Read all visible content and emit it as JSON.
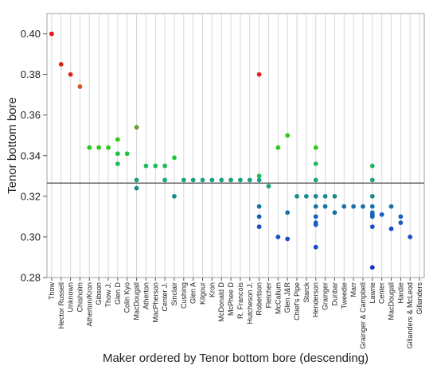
{
  "chart_data": {
    "type": "scatter",
    "title": "",
    "xlabel": "Maker ordered by Tenor bottom bore (descending)",
    "ylabel": "Tenor bottom bore",
    "ylim": [
      0.28,
      0.41
    ],
    "yticks": [
      0.28,
      0.3,
      0.32,
      0.34,
      0.36,
      0.38,
      0.4
    ],
    "ytick_labels": [
      "0.28",
      "0.30",
      "0.32",
      "0.34",
      "0.36",
      "0.38",
      "0.40"
    ],
    "grid": "vertical gridlines per category",
    "reference_line": 0.3265,
    "categories": [
      "Thow",
      "Hector Russell",
      "Unknown",
      "Chisholm",
      "Atherton/Kron",
      "Gibson",
      "Thow J.",
      "Glen D",
      "Colin Kyo",
      "MacDougall",
      "Atherton",
      "MacPherson",
      "Center J.",
      "Sinclair",
      "Cushing",
      "Glen A",
      "Kilgour",
      "Kron",
      "McDonald D",
      "McPhee D",
      "R. Francois",
      "Hutcheson J.",
      "Robertson",
      "Fletcher",
      "McCallum",
      "Glen J&R",
      "Chief's Pipe",
      "Starck",
      "Henderson",
      "Grainger",
      "Dunbar",
      "Tweedie",
      "Marr",
      "Grainger & Campbell",
      "Lawrie",
      "Center",
      "MacDougall",
      "Hardie",
      "Gillanders & McLeod",
      "Gillanders"
    ],
    "points": [
      {
        "x": 0,
        "y": 0.4,
        "color": "#e8121a"
      },
      {
        "x": 1,
        "y": 0.385,
        "color": "#e02418"
      },
      {
        "x": 2,
        "y": 0.38,
        "color": "#e02418"
      },
      {
        "x": 3,
        "y": 0.374,
        "color": "#d2561d"
      },
      {
        "x": 4,
        "y": 0.344,
        "color": "#2fc81e"
      },
      {
        "x": 5,
        "y": 0.344,
        "color": "#2fc81e"
      },
      {
        "x": 6,
        "y": 0.344,
        "color": "#2fc81e"
      },
      {
        "x": 7,
        "y": 0.348,
        "color": "#36c81c"
      },
      {
        "x": 7,
        "y": 0.341,
        "color": "#22c43a"
      },
      {
        "x": 7,
        "y": 0.336,
        "color": "#1ebb58"
      },
      {
        "x": 8,
        "y": 0.341,
        "color": "#22c43a"
      },
      {
        "x": 9,
        "y": 0.354,
        "color": "#6a9e2a"
      },
      {
        "x": 9,
        "y": 0.328,
        "color": "#1aa37e"
      },
      {
        "x": 9,
        "y": 0.324,
        "color": "#1a8a8c"
      },
      {
        "x": 10,
        "y": 0.335,
        "color": "#1ebb58"
      },
      {
        "x": 11,
        "y": 0.335,
        "color": "#1ebb58"
      },
      {
        "x": 12,
        "y": 0.335,
        "color": "#1ebb58"
      },
      {
        "x": 12,
        "y": 0.328,
        "color": "#1aa37e"
      },
      {
        "x": 13,
        "y": 0.339,
        "color": "#22c43a"
      },
      {
        "x": 13,
        "y": 0.32,
        "color": "#1a8a8c"
      },
      {
        "x": 14,
        "y": 0.328,
        "color": "#1aa37e"
      },
      {
        "x": 15,
        "y": 0.328,
        "color": "#1aa37e"
      },
      {
        "x": 16,
        "y": 0.328,
        "color": "#1aa37e"
      },
      {
        "x": 17,
        "y": 0.328,
        "color": "#1aa37e"
      },
      {
        "x": 18,
        "y": 0.328,
        "color": "#1aa37e"
      },
      {
        "x": 19,
        "y": 0.328,
        "color": "#1aa37e"
      },
      {
        "x": 20,
        "y": 0.328,
        "color": "#1aa37e"
      },
      {
        "x": 21,
        "y": 0.328,
        "color": "#1aa37e"
      },
      {
        "x": 22,
        "y": 0.38,
        "color": "#e02418"
      },
      {
        "x": 22,
        "y": 0.33,
        "color": "#1ebb58"
      },
      {
        "x": 22,
        "y": 0.328,
        "color": "#1aa37e"
      },
      {
        "x": 22,
        "y": 0.315,
        "color": "#1a70a8"
      },
      {
        "x": 22,
        "y": 0.31,
        "color": "#1a5fc0"
      },
      {
        "x": 22,
        "y": 0.305,
        "color": "#1a4ec8"
      },
      {
        "x": 23,
        "y": 0.325,
        "color": "#1aa37e"
      },
      {
        "x": 24,
        "y": 0.344,
        "color": "#2fc81e"
      },
      {
        "x": 24,
        "y": 0.3,
        "color": "#1a50c8"
      },
      {
        "x": 25,
        "y": 0.35,
        "color": "#36c81c"
      },
      {
        "x": 25,
        "y": 0.312,
        "color": "#1a70a8"
      },
      {
        "x": 25,
        "y": 0.299,
        "color": "#1a50c8"
      },
      {
        "x": 26,
        "y": 0.32,
        "color": "#1a8a8c"
      },
      {
        "x": 27,
        "y": 0.32,
        "color": "#1a8a8c"
      },
      {
        "x": 28,
        "y": 0.344,
        "color": "#2fc81e"
      },
      {
        "x": 28,
        "y": 0.336,
        "color": "#1ebb58"
      },
      {
        "x": 28,
        "y": 0.328,
        "color": "#1aa37e"
      },
      {
        "x": 28,
        "y": 0.32,
        "color": "#1a8a8c"
      },
      {
        "x": 28,
        "y": 0.315,
        "color": "#1a70a8"
      },
      {
        "x": 28,
        "y": 0.31,
        "color": "#1a5fc0"
      },
      {
        "x": 28,
        "y": 0.307,
        "color": "#1a5fc0"
      },
      {
        "x": 28,
        "y": 0.306,
        "color": "#1a5fc0"
      },
      {
        "x": 28,
        "y": 0.295,
        "color": "#1a48c8"
      },
      {
        "x": 29,
        "y": 0.32,
        "color": "#1a8a8c"
      },
      {
        "x": 29,
        "y": 0.315,
        "color": "#1a70a8"
      },
      {
        "x": 30,
        "y": 0.32,
        "color": "#1a8a8c"
      },
      {
        "x": 30,
        "y": 0.312,
        "color": "#1a70a8"
      },
      {
        "x": 31,
        "y": 0.315,
        "color": "#1a70a8"
      },
      {
        "x": 32,
        "y": 0.315,
        "color": "#1a70a8"
      },
      {
        "x": 33,
        "y": 0.315,
        "color": "#1a70a8"
      },
      {
        "x": 34,
        "y": 0.335,
        "color": "#1ebb58"
      },
      {
        "x": 34,
        "y": 0.328,
        "color": "#1aa37e"
      },
      {
        "x": 34,
        "y": 0.32,
        "color": "#1a8a8c"
      },
      {
        "x": 34,
        "y": 0.315,
        "color": "#1a70a8"
      },
      {
        "x": 34,
        "y": 0.312,
        "color": "#1a70a8"
      },
      {
        "x": 34,
        "y": 0.311,
        "color": "#1a5fc0"
      },
      {
        "x": 34,
        "y": 0.31,
        "color": "#1a5fc0"
      },
      {
        "x": 34,
        "y": 0.305,
        "color": "#1a4ec8"
      },
      {
        "x": 34,
        "y": 0.285,
        "color": "#1a30c8"
      },
      {
        "x": 35,
        "y": 0.311,
        "color": "#1a5fc0"
      },
      {
        "x": 36,
        "y": 0.315,
        "color": "#1a70a8"
      },
      {
        "x": 36,
        "y": 0.304,
        "color": "#1a4ec8"
      },
      {
        "x": 37,
        "y": 0.31,
        "color": "#1a5fc0"
      },
      {
        "x": 37,
        "y": 0.307,
        "color": "#1a5fc0"
      },
      {
        "x": 38,
        "y": 0.3,
        "color": "#1a50c8"
      }
    ]
  }
}
